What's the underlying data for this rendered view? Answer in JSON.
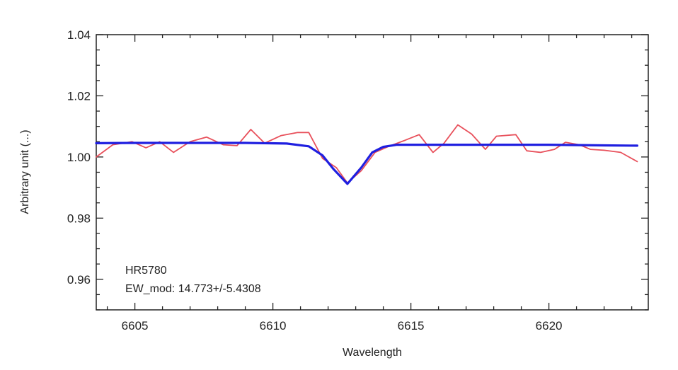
{
  "chart_data": {
    "type": "line",
    "title": "",
    "xlabel": "Wavelength",
    "ylabel": "Arbitrary unit (...)",
    "xlim": [
      6603.6,
      6623.6
    ],
    "ylim": [
      0.95,
      1.04
    ],
    "x_ticks": [
      6605,
      6610,
      6615,
      6620
    ],
    "x_tick_labels": [
      "6605",
      "6610",
      "6615",
      "6620"
    ],
    "y_ticks": [
      0.96,
      0.98,
      1.0,
      1.02,
      1.04
    ],
    "y_tick_labels": [
      "0.96",
      "0.98",
      "1.00",
      "1.02",
      "1.04"
    ],
    "grid": false,
    "annotations": [
      "HR5780",
      "EW_mod: 14.773+/-5.4308"
    ],
    "series": [
      {
        "color": "#e8505b",
        "x": [
          6603.6,
          6604.2,
          6604.9,
          6605.4,
          6605.9,
          6606.4,
          6607.0,
          6607.6,
          6608.2,
          6608.7,
          6609.2,
          6609.7,
          6610.3,
          6610.9,
          6611.3,
          6611.8,
          6612.3,
          6612.7,
          6613.2,
          6613.7,
          6614.2,
          6614.8,
          6615.3,
          6615.8,
          6616.2,
          6616.7,
          6617.2,
          6617.7,
          6618.1,
          6618.8,
          6619.2,
          6619.7,
          6620.2,
          6620.6,
          6621.1,
          6621.5,
          6622.0,
          6622.6,
          6623.2
        ],
        "y": [
          1.0,
          1.004,
          1.005,
          1.003,
          1.005,
          1.0015,
          1.005,
          1.0065,
          1.004,
          1.0037,
          1.009,
          1.0045,
          1.007,
          1.008,
          1.008,
          0.9995,
          0.9965,
          0.9915,
          0.9955,
          1.0015,
          1.0035,
          1.0055,
          1.0073,
          1.0015,
          1.0045,
          1.0105,
          1.0075,
          1.0025,
          1.0068,
          1.0073,
          1.002,
          1.0015,
          1.0025,
          1.0048,
          1.004,
          1.0025,
          1.0022,
          1.0015,
          0.9985
        ]
      },
      {
        "color": "#1f1fe0",
        "x": [
          6603.6,
          6605.0,
          6607.0,
          6609.0,
          6610.5,
          6611.3,
          6611.8,
          6612.2,
          6612.7,
          6613.2,
          6613.6,
          6614.0,
          6614.5,
          6616.0,
          6618.0,
          6620.0,
          6622.0,
          6623.2
        ],
        "y": [
          1.0045,
          1.0046,
          1.0046,
          1.0046,
          1.0044,
          1.0035,
          1.0005,
          0.996,
          0.9912,
          0.9965,
          1.0015,
          1.0033,
          1.004,
          1.004,
          1.004,
          1.004,
          1.0038,
          1.0037
        ]
      }
    ]
  }
}
